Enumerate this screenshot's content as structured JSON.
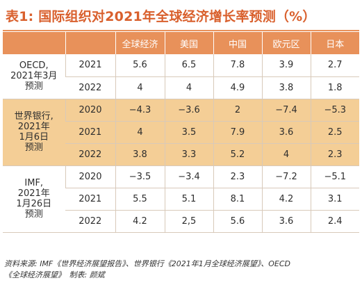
{
  "title": "表1: 国际组织对2021年全球经济增长率预测（%）",
  "columns": [
    "全球经济",
    "美国",
    "中国",
    "欧元区",
    "日本"
  ],
  "groups": [
    {
      "label_lines": [
        "OECD,",
        "2021年3月",
        "预测"
      ],
      "highlight": false,
      "rows": [
        {
          "year": "2021",
          "values": [
            "5.6",
            "6.5",
            "7.8",
            "3.9",
            "2.7"
          ]
        },
        {
          "year": "2022",
          "values": [
            "4",
            "4",
            "4.9",
            "3.8",
            "1.8"
          ]
        }
      ]
    },
    {
      "label_lines": [
        "世界银行,",
        "2021年",
        "1月6日",
        "预测"
      ],
      "highlight": true,
      "rows": [
        {
          "year": "2020",
          "values": [
            "−4.3",
            "−3.6",
            "2",
            "−7.4",
            "−5.3"
          ]
        },
        {
          "year": "2021",
          "values": [
            "4",
            "3.5",
            "7.9",
            "3.6",
            "2.5"
          ]
        },
        {
          "year": "2022",
          "values": [
            "3.8",
            "3.3",
            "5.2",
            "4",
            "2.3"
          ]
        }
      ]
    },
    {
      "label_lines": [
        "IMF,",
        "2021年",
        "1月26日",
        "预测"
      ],
      "highlight": false,
      "rows": [
        {
          "year": "2020",
          "values": [
            "−3.5",
            "−3.4",
            "2.3",
            "−7.2",
            "−5.1"
          ]
        },
        {
          "year": "2021",
          "values": [
            "5.5",
            "5.1",
            "8.1",
            "4.2",
            "3.1"
          ]
        },
        {
          "year": "2022",
          "values": [
            "4.2",
            "2,5",
            "5.6",
            "3.6",
            "2.4"
          ]
        }
      ]
    }
  ],
  "source_lines": [
    "资料来源: IMF《世界经济展望报告》、世界银行《2021年1月全球经济展望》、OECD",
    "《全球经济展望》　制表: 颜斌"
  ],
  "colors": {
    "title": "#d9602d",
    "header_bg": "#e8915a",
    "highlight_bg": "#f4ce96",
    "grid": "#d8c9b9"
  }
}
